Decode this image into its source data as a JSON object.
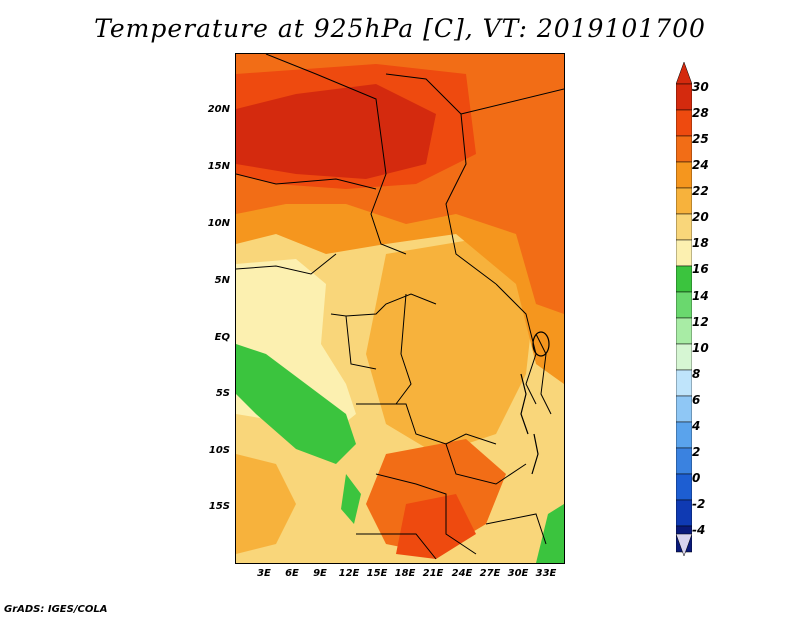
{
  "title": "Temperature at 925hPa [C], VT: 2019101700",
  "credit": "GrADS: IGES/COLA",
  "map": {
    "variable": "Temperature at 925hPa",
    "units": "C",
    "valid_time": "2019101700",
    "lat_labels": [
      "20N",
      "15N",
      "10N",
      "5N",
      "EQ",
      "5S",
      "10S",
      "15S"
    ],
    "lon_labels": [
      "3E",
      "6E",
      "9E",
      "12E",
      "15E",
      "18E",
      "21E",
      "24E",
      "27E",
      "30E",
      "33E"
    ]
  },
  "colorbar": {
    "labels": [
      "30",
      "28",
      "25",
      "24",
      "22",
      "20",
      "18",
      "16",
      "14",
      "12",
      "10",
      "8",
      "6",
      "4",
      "2",
      "0",
      "-2",
      "-4"
    ],
    "colors": [
      "#d42a0e",
      "#ee4a0f",
      "#f26d16",
      "#f5961e",
      "#f7b23c",
      "#f9d67a",
      "#fcf0b0",
      "#3bc43e",
      "#6ad86e",
      "#a8eca5",
      "#d6f6d3",
      "#bfe4fb",
      "#8fc7f5",
      "#5aa3ec",
      "#3a82e0",
      "#1d5ed2",
      "#0f3ab3",
      "#0a1a7a"
    ]
  }
}
